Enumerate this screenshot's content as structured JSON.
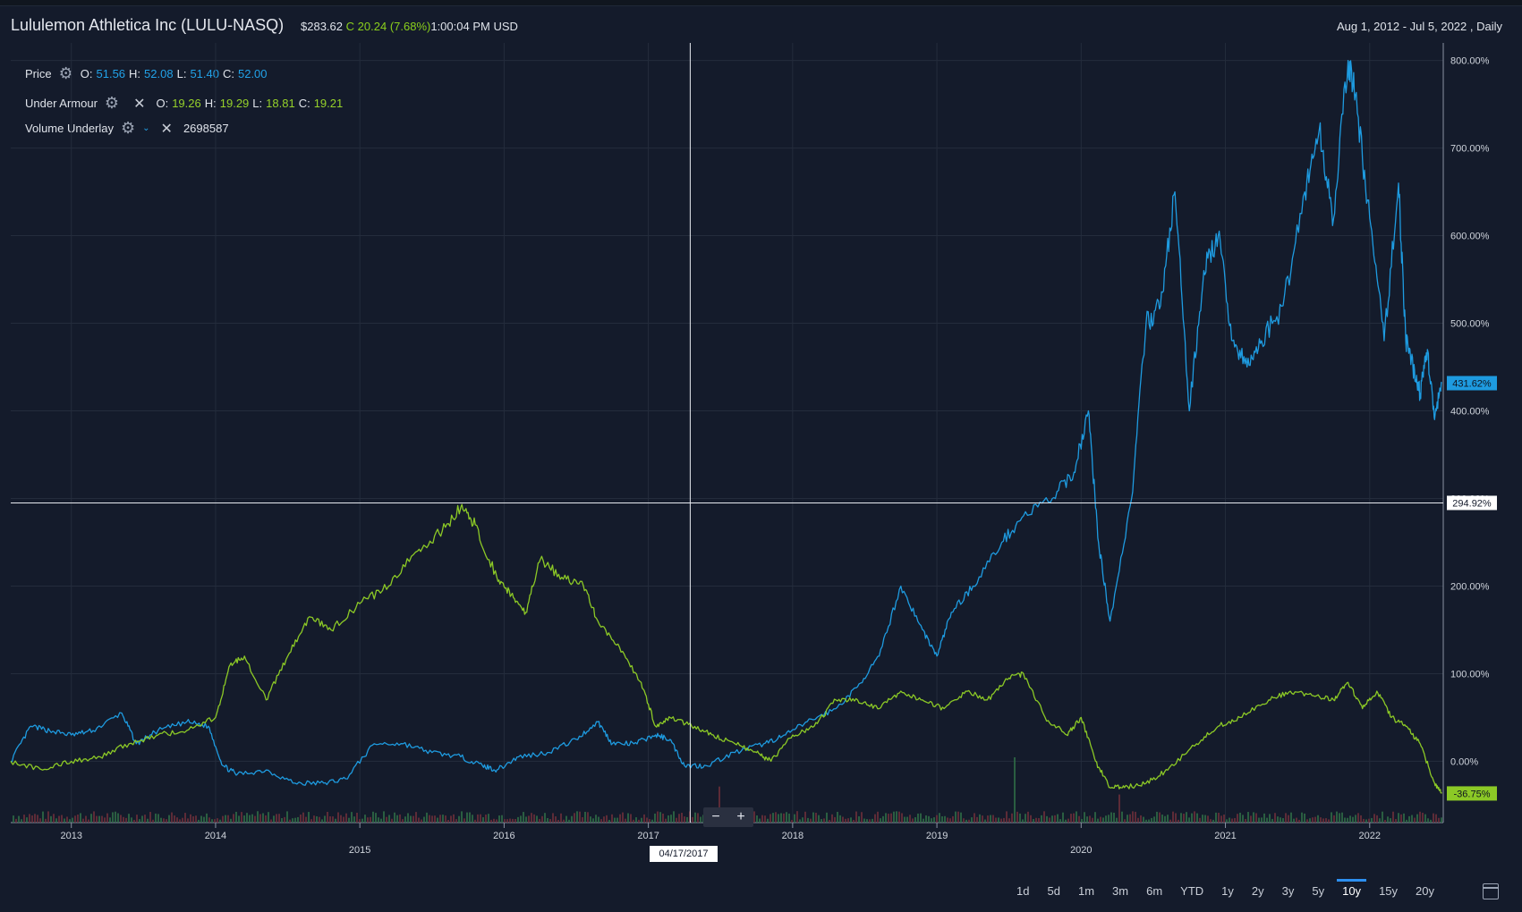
{
  "header": {
    "title": "Lululemon Athletica Inc (LULU-NASQ)",
    "price": "$283.62",
    "c_label": "C",
    "change": "20.24",
    "change_pct": "(7.68%)",
    "time": "1:00:04 PM",
    "currency": "USD",
    "date_range": "Aug 1, 2012 - Jul 5, 2022 , Daily"
  },
  "legend": {
    "price": {
      "label": "Price",
      "o_label": "O:",
      "o": "51.56",
      "h_label": "H:",
      "h": "52.08",
      "l_label": "L:",
      "l": "51.40",
      "c_label": "C:",
      "c": "52.00"
    },
    "under_armour": {
      "label": "Under Armour",
      "o_label": "O:",
      "o": "19.26",
      "h_label": "H:",
      "h": "19.29",
      "l_label": "L:",
      "l": "18.81",
      "c_label": "C:",
      "c": "19.21"
    },
    "volume": {
      "label": "Volume Underlay",
      "value": "2698587"
    }
  },
  "crosshair": {
    "y_label": "294.92%",
    "date_label": "04/17/2017"
  },
  "zoom": {
    "minus": "−",
    "plus": "+"
  },
  "timeframes": [
    "1d",
    "5d",
    "1m",
    "3m",
    "6m",
    "YTD",
    "1y",
    "2y",
    "3y",
    "5y",
    "10y",
    "15y",
    "20y"
  ],
  "active_timeframe": "10y",
  "colors": {
    "lulu": "#1e9be0",
    "ua": "#8cc926",
    "bg": "#141b2b",
    "grid": "#242c3c"
  },
  "chart_data": {
    "type": "line",
    "xlim": [
      2012.58,
      2022.51
    ],
    "ylim": [
      -70,
      820
    ],
    "y_ticks": [
      0,
      100,
      200,
      300,
      400,
      500,
      600,
      700,
      800
    ],
    "y_tick_labels": [
      "0.00%",
      "100.00%",
      "200.00%",
      "300.00%",
      "400.00%",
      "500.00%",
      "600.00%",
      "700.00%",
      "800.00%"
    ],
    "x_ticks": [
      2013,
      2014,
      2015,
      2016,
      2017,
      2018,
      2019,
      2020,
      2021,
      2022
    ],
    "x_tick_labels": [
      "2013",
      "2014",
      "2015",
      "2016",
      "2017",
      "2018",
      "2019",
      "2020",
      "2021",
      "2022"
    ],
    "end_labels": {
      "lulu": "431.62%",
      "ua": "-36.75%"
    },
    "series": [
      {
        "x": [
          2012.58,
          2012.72,
          2012.85,
          2013.0,
          2013.15,
          2013.35,
          2013.45,
          2013.6,
          2013.8,
          2013.95,
          2014.05,
          2014.15,
          2014.35,
          2014.55,
          2014.75,
          2014.9,
          2015.1,
          2015.3,
          2015.5,
          2015.7,
          2015.85,
          2015.95,
          2016.1,
          2016.3,
          2016.5,
          2016.65,
          2016.75,
          2016.9,
          2017.05,
          2017.15,
          2017.25,
          2017.4,
          2017.6,
          2017.8,
          2017.95,
          2018.1,
          2018.3,
          2018.45,
          2018.6,
          2018.75,
          2018.9,
          2019.0,
          2019.1,
          2019.25,
          2019.45,
          2019.6,
          2019.8,
          2019.95,
          2020.05,
          2020.12,
          2020.2,
          2020.35,
          2020.45,
          2020.55,
          2020.65,
          2020.75,
          2020.85,
          2020.95,
          2021.05,
          2021.15,
          2021.25,
          2021.4,
          2021.55,
          2021.65,
          2021.75,
          2021.85,
          2021.9,
          2022.0,
          2022.1,
          2022.2,
          2022.25,
          2022.3,
          2022.35,
          2022.4,
          2022.45,
          2022.5
        ],
        "values": [
          0,
          40,
          35,
          30,
          35,
          55,
          20,
          35,
          45,
          40,
          -5,
          -15,
          -10,
          -25,
          -25,
          -20,
          20,
          20,
          10,
          5,
          -5,
          -10,
          5,
          10,
          25,
          45,
          20,
          20,
          30,
          25,
          -5,
          -5,
          10,
          20,
          30,
          45,
          60,
          85,
          120,
          200,
          150,
          120,
          170,
          200,
          250,
          280,
          300,
          330,
          400,
          250,
          160,
          300,
          500,
          520,
          650,
          400,
          560,
          600,
          480,
          450,
          480,
          520,
          650,
          720,
          620,
          800,
          760,
          620,
          480,
          660,
          480,
          450,
          420,
          470,
          390,
          431.62
        ]
      },
      {
        "x": [
          2012.58,
          2012.8,
          2013.0,
          2013.2,
          2013.4,
          2013.6,
          2013.8,
          2014.0,
          2014.1,
          2014.2,
          2014.35,
          2014.5,
          2014.65,
          2014.8,
          2015.0,
          2015.2,
          2015.4,
          2015.55,
          2015.7,
          2015.8,
          2015.95,
          2016.05,
          2016.15,
          2016.25,
          2016.4,
          2016.55,
          2016.65,
          2016.8,
          2016.95,
          2017.05,
          2017.15,
          2017.3,
          2017.45,
          2017.6,
          2017.75,
          2017.85,
          2018.0,
          2018.15,
          2018.3,
          2018.45,
          2018.6,
          2018.75,
          2018.9,
          2019.05,
          2019.2,
          2019.35,
          2019.5,
          2019.6,
          2019.75,
          2019.9,
          2020.0,
          2020.1,
          2020.2,
          2020.3,
          2020.45,
          2020.6,
          2020.8,
          2020.95,
          2021.1,
          2021.3,
          2021.45,
          2021.6,
          2021.75,
          2021.85,
          2021.95,
          2022.05,
          2022.15,
          2022.25,
          2022.35,
          2022.45,
          2022.5
        ],
        "values": [
          0,
          -10,
          0,
          5,
          20,
          30,
          35,
          50,
          110,
          120,
          70,
          120,
          165,
          150,
          180,
          200,
          240,
          260,
          290,
          270,
          210,
          190,
          170,
          230,
          210,
          200,
          160,
          130,
          90,
          40,
          50,
          40,
          30,
          20,
          10,
          0,
          30,
          40,
          70,
          70,
          60,
          80,
          70,
          60,
          80,
          70,
          95,
          100,
          50,
          30,
          50,
          0,
          -30,
          -30,
          -25,
          -10,
          20,
          40,
          50,
          70,
          80,
          75,
          70,
          90,
          60,
          80,
          50,
          40,
          20,
          -25,
          -36.75
        ]
      }
    ]
  }
}
